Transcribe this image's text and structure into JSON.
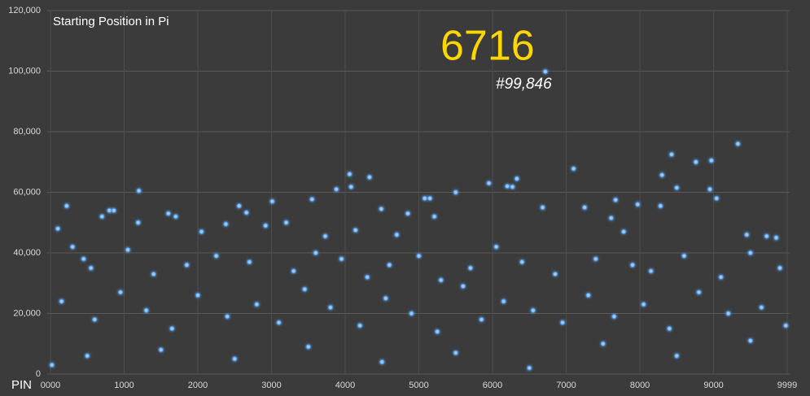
{
  "chart_data": {
    "type": "scatter",
    "title": "Starting Position in Pi",
    "x_label": "PIN",
    "annotations": [
      {
        "text": "6716"
      },
      {
        "text": "#99,846"
      }
    ],
    "color": "#9ccaf5",
    "grid": true,
    "xlim": [
      0,
      9999
    ],
    "ylim": [
      0,
      120000
    ],
    "xticks": [
      {
        "value": 0,
        "label": "0000"
      },
      1000,
      2000,
      3000,
      4000,
      5000,
      6000,
      7000,
      8000,
      9000,
      9999
    ],
    "yticks": [
      0,
      {
        "value": 20000,
        "label": "20,000"
      },
      {
        "value": 40000,
        "label": "40,000"
      },
      {
        "value": 60000,
        "label": "60,000"
      },
      {
        "value": 80000,
        "label": "80,000"
      },
      {
        "value": 100000,
        "label": "100,000"
      },
      {
        "value": 120000,
        "label": "120,000"
      }
    ],
    "x": [
      6716,
      9330,
      8430,
      8970,
      8760,
      7100,
      4060,
      4330,
      8300,
      6330,
      5950,
      8500,
      8950,
      4080,
      3880,
      1200,
      5500,
      6200,
      6270,
      9040,
      5080,
      5150,
      3550,
      7670,
      7970,
      8280,
      3010,
      2560,
      220,
      800,
      860,
      6680,
      7250,
      4490,
      2660,
      1600,
      1700,
      700,
      3200,
      4850,
      5210,
      7610,
      1190,
      2380,
      2920,
      4700,
      3730,
      9720,
      9850,
      9450,
      7780,
      2050,
      100,
      4140,
      300,
      450,
      550,
      1050,
      1400,
      1850,
      2250,
      2700,
      3300,
      3600,
      3950,
      4300,
      4600,
      5000,
      5300,
      5700,
      6050,
      6400,
      6850,
      7400,
      7900,
      8150,
      8600,
      9100,
      9500,
      9900,
      150,
      600,
      950,
      1300,
      1650,
      2000,
      2400,
      2800,
      3100,
      3450,
      3800,
      4200,
      4550,
      4900,
      5250,
      5600,
      5850,
      6150,
      6550,
      6950,
      7300,
      7650,
      8050,
      8400,
      8800,
      9200,
      9650,
      9980,
      20,
      500,
      1500,
      2500,
      3500,
      4500,
      5500,
      6500,
      7500,
      8500,
      9500
    ],
    "values": [
      99846,
      76000,
      72500,
      70500,
      70000,
      67800,
      66000,
      65000,
      65700,
      64500,
      63000,
      61500,
      61000,
      61800,
      61000,
      60500,
      60000,
      62000,
      61800,
      58000,
      58000,
      58000,
      57700,
      57500,
      56000,
      55500,
      57000,
      55500,
      55500,
      54000,
      54000,
      55000,
      55000,
      54500,
      53300,
      53000,
      52000,
      52000,
      50000,
      53000,
      52000,
      51500,
      50000,
      49500,
      49000,
      46000,
      45500,
      45500,
      45000,
      46000,
      47000,
      47000,
      48000,
      47500,
      42000,
      38000,
      35000,
      41000,
      33000,
      36000,
      39000,
      37000,
      34000,
      40000,
      38000,
      32000,
      36000,
      39000,
      31000,
      35000,
      42000,
      37000,
      33000,
      38000,
      36000,
      34000,
      39000,
      32000,
      40000,
      35000,
      24000,
      18000,
      27000,
      21000,
      15000,
      26000,
      19000,
      23000,
      17000,
      28000,
      22000,
      16000,
      25000,
      20000,
      14000,
      29000,
      18000,
      24000,
      21000,
      17000,
      26000,
      19000,
      23000,
      15000,
      27000,
      20000,
      22000,
      16000,
      3000,
      6000,
      8000,
      5000,
      9000,
      4000,
      7000,
      2000,
      10000,
      6000,
      11000
    ]
  }
}
